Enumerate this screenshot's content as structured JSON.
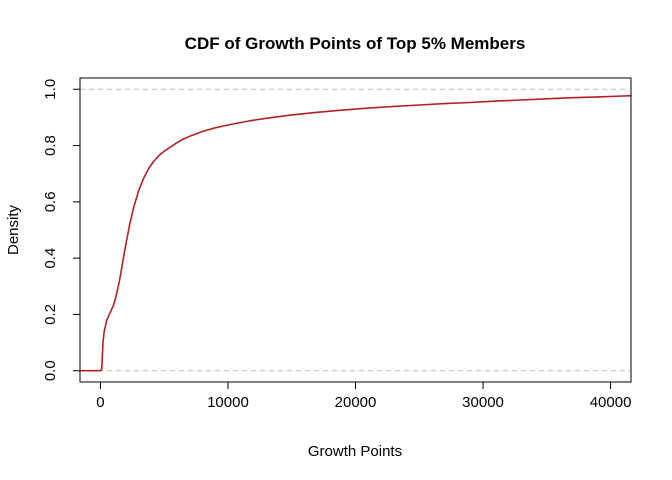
{
  "chart_data": {
    "type": "line",
    "title": "CDF of Growth Points of Top 5% Members",
    "xlabel": "Growth Points",
    "ylabel": "Density",
    "xlim": [
      -1600,
      41600
    ],
    "ylim": [
      -0.04,
      1.04
    ],
    "x_ticks": [
      0,
      10000,
      20000,
      30000,
      40000
    ],
    "x_tick_labels": [
      "0",
      "10000",
      "20000",
      "30000",
      "40000"
    ],
    "y_ticks": [
      0.0,
      0.2,
      0.4,
      0.6,
      0.8,
      1.0
    ],
    "y_tick_labels": [
      "0.0",
      "0.2",
      "0.4",
      "0.6",
      "0.8",
      "1.0"
    ],
    "reference_lines": [
      0,
      1
    ],
    "reference_line_color": "#bdbdbd",
    "grid": false,
    "legend": "none",
    "series": [
      {
        "color": "#b22222",
        "x": [
          -1600,
          0,
          100,
          200,
          300,
          500,
          800,
          1000,
          1200,
          1500,
          1800,
          2000,
          2300,
          2600,
          3000,
          3400,
          3800,
          4200,
          4600,
          5000,
          5500,
          6000,
          6500,
          7000,
          8000,
          9000,
          10000,
          11000,
          12000,
          13000,
          14000,
          15000,
          17000,
          19000,
          21000,
          23000,
          25000,
          27000,
          29000,
          31000,
          33000,
          35000,
          37000,
          39000,
          41000,
          41600
        ],
        "y": [
          0.0,
          0.0,
          0.005,
          0.1,
          0.14,
          0.18,
          0.21,
          0.23,
          0.26,
          0.32,
          0.4,
          0.45,
          0.52,
          0.58,
          0.64,
          0.685,
          0.72,
          0.745,
          0.765,
          0.78,
          0.795,
          0.81,
          0.823,
          0.833,
          0.85,
          0.863,
          0.873,
          0.882,
          0.89,
          0.897,
          0.903,
          0.909,
          0.918,
          0.926,
          0.933,
          0.939,
          0.944,
          0.949,
          0.953,
          0.958,
          0.962,
          0.966,
          0.97,
          0.973,
          0.976,
          0.977
        ]
      }
    ]
  }
}
